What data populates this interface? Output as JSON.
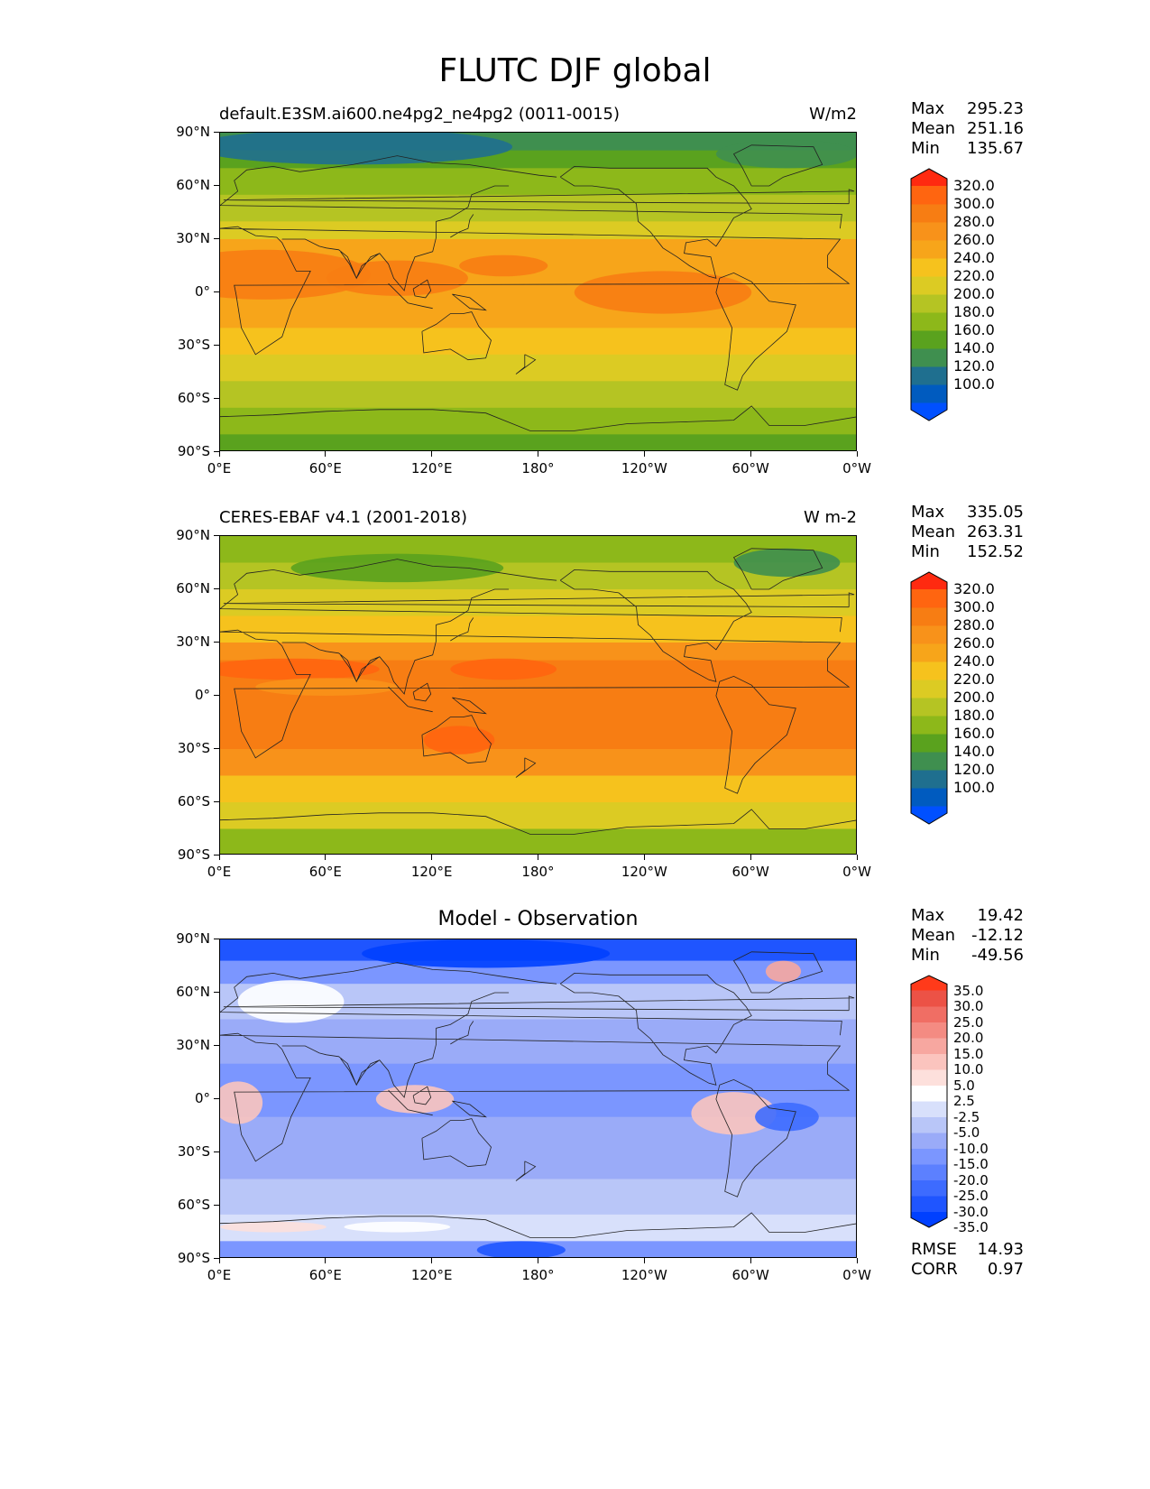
{
  "figure": {
    "title": "FLUTC DJF global"
  },
  "panels": [
    {
      "id": "model",
      "left_title": "default.E3SM.ai600.ne4pg2_ne4pg2 (0011-0015)",
      "right_title": "W/m2",
      "center_title": "",
      "stats": {
        "max_label": "Max",
        "max": "295.23",
        "mean_label": "Mean",
        "mean": "251.16",
        "min_label": "Min",
        "min": "135.67"
      },
      "colorbar": {
        "colors": [
          "#0050ff",
          "#005bbf",
          "#1f6f8f",
          "#3f8f4f",
          "#5aa21e",
          "#8db81a",
          "#b5c423",
          "#dccb23",
          "#f6c21d",
          "#f7a51a",
          "#f8921a",
          "#f77d13",
          "#ff6510",
          "#ff2a10"
        ],
        "labels": [
          "320.0",
          "300.0",
          "280.0",
          "260.0",
          "240.0",
          "220.0",
          "200.0",
          "180.0",
          "160.0",
          "140.0",
          "120.0",
          "100.0"
        ]
      },
      "bands": [
        {
          "lat_top": 90,
          "lat_bottom": 80,
          "color": "#3f8f4f"
        },
        {
          "lat_top": 80,
          "lat_bottom": 70,
          "color": "#5aa21e"
        },
        {
          "lat_top": 70,
          "lat_bottom": 55,
          "color": "#8db81a"
        },
        {
          "lat_top": 55,
          "lat_bottom": 40,
          "color": "#b5c423"
        },
        {
          "lat_top": 40,
          "lat_bottom": 30,
          "color": "#dccb23"
        },
        {
          "lat_top": 30,
          "lat_bottom": 15,
          "color": "#f7a51a"
        },
        {
          "lat_top": 15,
          "lat_bottom": -20,
          "color": "#f7a51a"
        },
        {
          "lat_top": -20,
          "lat_bottom": -35,
          "color": "#f6c21d"
        },
        {
          "lat_top": -35,
          "lat_bottom": -50,
          "color": "#dccb23"
        },
        {
          "lat_top": -50,
          "lat_bottom": -65,
          "color": "#b5c423"
        },
        {
          "lat_top": -65,
          "lat_bottom": -80,
          "color": "#8db81a"
        },
        {
          "lat_top": -80,
          "lat_bottom": -90,
          "color": "#5aa21e"
        }
      ],
      "blobs": [
        {
          "lon": 25,
          "lat": 10,
          "dlon": 60,
          "dlat": 14,
          "color": "#f77d13"
        },
        {
          "lon": 100,
          "lat": 8,
          "dlon": 40,
          "dlat": 10,
          "color": "#f77d13"
        },
        {
          "lon": 160,
          "lat": 15,
          "dlon": 25,
          "dlat": 6,
          "color": "#f77d13"
        },
        {
          "lon": 250,
          "lat": 0,
          "dlon": 50,
          "dlat": 12,
          "color": "#f77d13"
        },
        {
          "lon": 75,
          "lat": 82,
          "dlon": 90,
          "dlat": 10,
          "color": "#1f6f8f"
        },
        {
          "lon": 320,
          "lat": 78,
          "dlon": 40,
          "dlat": 8,
          "color": "#3f8f4f"
        }
      ]
    },
    {
      "id": "obs",
      "left_title": "CERES-EBAF v4.1 (2001-2018)",
      "right_title": "W m-2",
      "center_title": "",
      "stats": {
        "max_label": "Max",
        "max": "335.05",
        "mean_label": "Mean",
        "mean": "263.31",
        "min_label": "Min",
        "min": "152.52"
      },
      "colorbar": {
        "colors": [
          "#0050ff",
          "#005bbf",
          "#1f6f8f",
          "#3f8f4f",
          "#5aa21e",
          "#8db81a",
          "#b5c423",
          "#dccb23",
          "#f6c21d",
          "#f7a51a",
          "#f8921a",
          "#f77d13",
          "#ff6510",
          "#ff2a10"
        ],
        "labels": [
          "320.0",
          "300.0",
          "280.0",
          "260.0",
          "240.0",
          "220.0",
          "200.0",
          "180.0",
          "160.0",
          "140.0",
          "120.0",
          "100.0"
        ]
      },
      "bands": [
        {
          "lat_top": 90,
          "lat_bottom": 75,
          "color": "#8db81a"
        },
        {
          "lat_top": 75,
          "lat_bottom": 60,
          "color": "#b5c423"
        },
        {
          "lat_top": 60,
          "lat_bottom": 45,
          "color": "#dccb23"
        },
        {
          "lat_top": 45,
          "lat_bottom": 30,
          "color": "#f6c21d"
        },
        {
          "lat_top": 30,
          "lat_bottom": 20,
          "color": "#f8921a"
        },
        {
          "lat_top": 20,
          "lat_bottom": -30,
          "color": "#f77d13"
        },
        {
          "lat_top": -30,
          "lat_bottom": -45,
          "color": "#f8921a"
        },
        {
          "lat_top": -45,
          "lat_bottom": -60,
          "color": "#f6c21d"
        },
        {
          "lat_top": -60,
          "lat_bottom": -75,
          "color": "#dccb23"
        },
        {
          "lat_top": -75,
          "lat_bottom": -90,
          "color": "#8db81a"
        }
      ],
      "blobs": [
        {
          "lon": 100,
          "lat": 72,
          "dlon": 60,
          "dlat": 8,
          "color": "#5aa21e"
        },
        {
          "lon": 320,
          "lat": 75,
          "dlon": 30,
          "dlat": 8,
          "color": "#3f8f4f"
        },
        {
          "lon": 160,
          "lat": 15,
          "dlon": 30,
          "dlat": 6,
          "color": "#ff6510"
        },
        {
          "lon": 40,
          "lat": 15,
          "dlon": 50,
          "dlat": 6,
          "color": "#ff6510"
        },
        {
          "lon": 135,
          "lat": -25,
          "dlon": 20,
          "dlat": 8,
          "color": "#ff6510"
        },
        {
          "lon": 60,
          "lat": 5,
          "dlon": 40,
          "dlat": 5,
          "color": "#f8921a"
        }
      ]
    },
    {
      "id": "diff",
      "left_title": "",
      "right_title": "",
      "center_title": "Model - Observation",
      "stats": {
        "max_label": "Max",
        "max": "19.42",
        "mean_label": "Mean",
        "mean": "-12.12",
        "min_label": "Min",
        "min": "-49.56"
      },
      "extra": {
        "rmse_label": "RMSE",
        "rmse": "14.93",
        "corr_label": "CORR",
        "corr": "0.97"
      },
      "colorbar": {
        "colors": [
          "#0040ff",
          "#1f55ff",
          "#3d6bff",
          "#5c80ff",
          "#7b96ff",
          "#9aabf8",
          "#b9c6f8",
          "#d8e0fb",
          "#ffffff",
          "#fde0dc",
          "#fbc4be",
          "#f7a7a0",
          "#f48b82",
          "#f06e64",
          "#ec5246",
          "#ff3a1a"
        ],
        "labels": [
          "35.0",
          "30.0",
          "25.0",
          "20.0",
          "15.0",
          "10.0",
          "5.0",
          "2.5",
          "-2.5",
          "-5.0",
          "-10.0",
          "-15.0",
          "-20.0",
          "-25.0",
          "-30.0",
          "-35.0"
        ]
      },
      "bands": [
        {
          "lat_top": 90,
          "lat_bottom": 78,
          "color": "#1f55ff"
        },
        {
          "lat_top": 78,
          "lat_bottom": 65,
          "color": "#7b96ff"
        },
        {
          "lat_top": 65,
          "lat_bottom": 45,
          "color": "#b9c6f8"
        },
        {
          "lat_top": 45,
          "lat_bottom": 20,
          "color": "#9aabf8"
        },
        {
          "lat_top": 20,
          "lat_bottom": -10,
          "color": "#7b96ff"
        },
        {
          "lat_top": -10,
          "lat_bottom": -45,
          "color": "#9aabf8"
        },
        {
          "lat_top": -45,
          "lat_bottom": -65,
          "color": "#b9c6f8"
        },
        {
          "lat_top": -65,
          "lat_bottom": -80,
          "color": "#d8e0fb"
        },
        {
          "lat_top": -80,
          "lat_bottom": -90,
          "color": "#7b96ff"
        }
      ],
      "blobs": [
        {
          "lon": 10,
          "lat": -2,
          "dlon": 14,
          "dlat": 12,
          "color": "#fbc4be"
        },
        {
          "lon": 110,
          "lat": 0,
          "dlon": 22,
          "dlat": 8,
          "color": "#fbc4be"
        },
        {
          "lon": 290,
          "lat": -8,
          "dlon": 24,
          "dlat": 12,
          "color": "#fbc4be"
        },
        {
          "lon": 318,
          "lat": 72,
          "dlon": 10,
          "dlat": 6,
          "color": "#f7a7a0"
        },
        {
          "lon": 40,
          "lat": 55,
          "dlon": 30,
          "dlat": 12,
          "color": "#ffffff"
        },
        {
          "lon": 30,
          "lat": -72,
          "dlon": 30,
          "dlat": 3,
          "color": "#fde0dc"
        },
        {
          "lon": 100,
          "lat": -72,
          "dlon": 30,
          "dlat": 3,
          "color": "#ffffff"
        },
        {
          "lon": 170,
          "lat": -85,
          "dlon": 25,
          "dlat": 5,
          "color": "#1f55ff"
        },
        {
          "lon": 320,
          "lat": -10,
          "dlon": 18,
          "dlat": 8,
          "color": "#3d6bff"
        },
        {
          "lon": 150,
          "lat": 82,
          "dlon": 70,
          "dlat": 8,
          "color": "#0040ff"
        }
      ]
    }
  ],
  "axes": {
    "lat_labels": [
      "90°N",
      "60°N",
      "30°N",
      "0°",
      "30°S",
      "60°S",
      "90°S"
    ],
    "lon_labels": [
      "0°E",
      "60°E",
      "120°E",
      "180°",
      "120°W",
      "60°W",
      "0°W"
    ]
  }
}
